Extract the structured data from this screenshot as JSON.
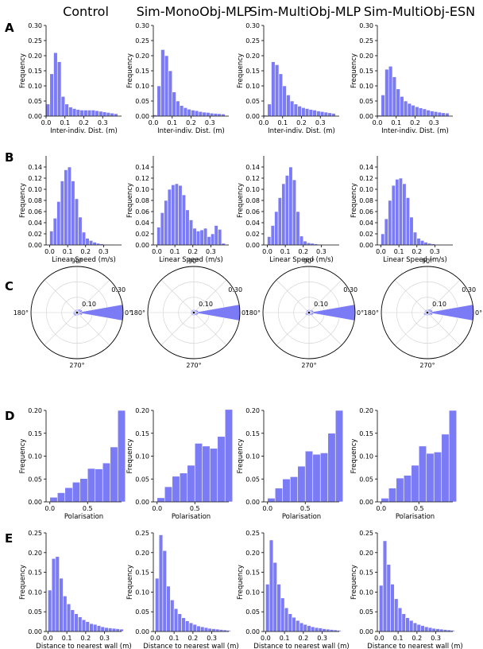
{
  "column_titles": [
    "Control",
    "Sim-MonoObj-MLP",
    "Sim-MultiObj-MLP",
    "Sim-MultiObj-ESN"
  ],
  "row_letters": [
    "A",
    "B",
    "C",
    "D",
    "E"
  ],
  "style": {
    "bar_color": "#7b7bf5",
    "bar_edge": "#ffffff",
    "axis_color": "#000000",
    "grid_color": "#cfcfcf"
  },
  "chart_data": [
    {
      "type": "bar",
      "row": "A",
      "xlabel": "Inter-indiv. Dist. (m)",
      "ylabel": "Frequency",
      "xlim": [
        0,
        0.4
      ],
      "ylim": [
        0,
        0.3
      ],
      "bin_width": 0.02,
      "xticks": [
        {
          "v": 0.0,
          "label": "0.0"
        },
        {
          "v": 0.1,
          "label": "0.1"
        },
        {
          "v": 0.2,
          "label": "0.2"
        },
        {
          "v": 0.3,
          "label": "0.3"
        }
      ],
      "yticks": [
        {
          "v": 0,
          "label": "0.00"
        },
        {
          "v": 0.05,
          "label": "0.05"
        },
        {
          "v": 0.1,
          "label": "0.10"
        },
        {
          "v": 0.15,
          "label": "0.15"
        },
        {
          "v": 0.2,
          "label": "0.20"
        },
        {
          "v": 0.25,
          "label": "0.25"
        },
        {
          "v": 0.3,
          "label": "0.30"
        }
      ],
      "series": [
        {
          "panel": "Control",
          "values": [
            0.04,
            0.14,
            0.21,
            0.18,
            0.065,
            0.04,
            0.03,
            0.025,
            0.022,
            0.02,
            0.02,
            0.02,
            0.02,
            0.018,
            0.016,
            0.014,
            0.012,
            0.01,
            0.008
          ]
        },
        {
          "panel": "Sim-MonoObj-MLP",
          "values": [
            0.004,
            0.1,
            0.22,
            0.2,
            0.15,
            0.08,
            0.05,
            0.035,
            0.028,
            0.023,
            0.02,
            0.018,
            0.015,
            0.013,
            0.012,
            0.01,
            0.009,
            0.008,
            0.007
          ]
        },
        {
          "panel": "Sim-MultiObj-MLP",
          "values": [
            0.003,
            0.04,
            0.18,
            0.17,
            0.14,
            0.1,
            0.07,
            0.05,
            0.04,
            0.033,
            0.028,
            0.025,
            0.022,
            0.02,
            0.017,
            0.015,
            0.013,
            0.011,
            0.009
          ]
        },
        {
          "panel": "Sim-MultiObj-ESN",
          "values": [
            0.003,
            0.07,
            0.155,
            0.165,
            0.13,
            0.09,
            0.065,
            0.05,
            0.042,
            0.036,
            0.031,
            0.027,
            0.024,
            0.02,
            0.017,
            0.015,
            0.013,
            0.011,
            0.01
          ]
        }
      ]
    },
    {
      "type": "bar",
      "row": "B",
      "xlabel": "Linear Speed (m/s)",
      "ylabel": "Frequency",
      "xlim": [
        -0.02,
        0.4
      ],
      "ylim": [
        0,
        0.16
      ],
      "bin_width": 0.02,
      "xticks": [
        {
          "v": 0.0,
          "label": "0.0"
        },
        {
          "v": 0.1,
          "label": "0.1"
        },
        {
          "v": 0.2,
          "label": "0.2"
        },
        {
          "v": 0.3,
          "label": "0.3"
        }
      ],
      "yticks": [
        {
          "v": 0,
          "label": "0.00"
        },
        {
          "v": 0.02,
          "label": "0.02"
        },
        {
          "v": 0.04,
          "label": "0.04"
        },
        {
          "v": 0.06,
          "label": "0.06"
        },
        {
          "v": 0.08,
          "label": "0.08"
        },
        {
          "v": 0.1,
          "label": "0.10"
        },
        {
          "v": 0.12,
          "label": "0.12"
        },
        {
          "v": 0.14,
          "label": "0.14"
        }
      ],
      "series": [
        {
          "panel": "Control",
          "values": [
            0.025,
            0.048,
            0.078,
            0.115,
            0.135,
            0.14,
            0.115,
            0.083,
            0.05,
            0.023,
            0.012,
            0.008,
            0.005,
            0.003,
            0.002,
            0.001,
            0.001,
            0.001,
            0.0
          ]
        },
        {
          "panel": "Sim-MonoObj-MLP",
          "values": [
            0.032,
            0.058,
            0.08,
            0.1,
            0.108,
            0.11,
            0.107,
            0.09,
            0.063,
            0.045,
            0.03,
            0.025,
            0.027,
            0.03,
            0.015,
            0.02,
            0.035,
            0.028,
            0.003
          ]
        },
        {
          "panel": "Sim-MultiObj-MLP",
          "values": [
            0.015,
            0.035,
            0.06,
            0.085,
            0.11,
            0.125,
            0.14,
            0.117,
            0.06,
            0.016,
            0.007,
            0.004,
            0.003,
            0.002,
            0.001,
            0.001,
            0.0,
            0.0,
            0.0
          ]
        },
        {
          "panel": "Sim-MultiObj-ESN",
          "values": [
            0.02,
            0.047,
            0.08,
            0.107,
            0.118,
            0.12,
            0.11,
            0.085,
            0.05,
            0.023,
            0.012,
            0.008,
            0.005,
            0.003,
            0.002,
            0.001,
            0.001,
            0.0,
            0.0
          ]
        }
      ]
    },
    {
      "type": "polar",
      "row": "C",
      "angle_labels": [
        "0°",
        "90°",
        "180°",
        "270°"
      ],
      "radius_labels": [
        "0.10",
        "0.30"
      ],
      "r_max": 0.3,
      "bin_count": 18,
      "series": [
        {
          "panel": "Control",
          "values": [
            0.3,
            0.035,
            0.03,
            0.025,
            0.02,
            0.02,
            0.02,
            0.02,
            0.02,
            0.025,
            0.025,
            0.025,
            0.025,
            0.02,
            0.02,
            0.02,
            0.02,
            0.035
          ]
        },
        {
          "panel": "Sim-MonoObj-MLP",
          "values": [
            0.3,
            0.03,
            0.025,
            0.02,
            0.02,
            0.02,
            0.02,
            0.02,
            0.02,
            0.02,
            0.02,
            0.02,
            0.02,
            0.02,
            0.02,
            0.02,
            0.025,
            0.03
          ]
        },
        {
          "panel": "Sim-MultiObj-MLP",
          "values": [
            0.3,
            0.03,
            0.025,
            0.02,
            0.02,
            0.02,
            0.02,
            0.02,
            0.02,
            0.02,
            0.025,
            0.025,
            0.02,
            0.02,
            0.02,
            0.02,
            0.025,
            0.03
          ]
        },
        {
          "panel": "Sim-MultiObj-ESN",
          "values": [
            0.3,
            0.035,
            0.03,
            0.025,
            0.02,
            0.02,
            0.02,
            0.02,
            0.02,
            0.02,
            0.025,
            0.025,
            0.02,
            0.02,
            0.02,
            0.02,
            0.025,
            0.035
          ]
        }
      ]
    },
    {
      "type": "bar",
      "row": "D",
      "xlabel": "Polarisation",
      "ylabel": "Frequency",
      "xlim": [
        -0.05,
        0.95
      ],
      "ylim": [
        0,
        0.2
      ],
      "bin_width": 0.1,
      "xticks": [
        {
          "v": 0.0,
          "label": "0.0"
        },
        {
          "v": 0.5,
          "label": "0.5"
        }
      ],
      "yticks": [
        {
          "v": 0,
          "label": "0.00"
        },
        {
          "v": 0.05,
          "label": "0.05"
        },
        {
          "v": 0.1,
          "label": "0.10"
        },
        {
          "v": 0.15,
          "label": "0.15"
        },
        {
          "v": 0.2,
          "label": "0.20"
        }
      ],
      "series": [
        {
          "panel": "Control",
          "values": [
            0.01,
            0.02,
            0.031,
            0.043,
            0.051,
            0.073,
            0.072,
            0.085,
            0.12,
            0.2
          ]
        },
        {
          "panel": "Sim-MonoObj-MLP",
          "values": [
            0.009,
            0.033,
            0.056,
            0.063,
            0.08,
            0.128,
            0.122,
            0.117,
            0.143,
            0.202
          ]
        },
        {
          "panel": "Sim-MultiObj-MLP",
          "values": [
            0.008,
            0.03,
            0.05,
            0.055,
            0.078,
            0.111,
            0.104,
            0.107,
            0.15,
            0.2
          ]
        },
        {
          "panel": "Sim-MultiObj-ESN",
          "values": [
            0.008,
            0.03,
            0.052,
            0.058,
            0.08,
            0.122,
            0.106,
            0.109,
            0.148,
            0.2
          ]
        }
      ]
    },
    {
      "type": "bar",
      "row": "E",
      "xlabel": "Distance to nearest wall (m)",
      "ylabel": "Frequency",
      "xlim": [
        -0.01,
        0.39
      ],
      "ylim": [
        0,
        0.25
      ],
      "bin_width": 0.02,
      "xticks": [
        {
          "v": 0.0,
          "label": "0.0"
        },
        {
          "v": 0.1,
          "label": "0.1"
        },
        {
          "v": 0.2,
          "label": "0.2"
        },
        {
          "v": 0.3,
          "label": "0.3"
        }
      ],
      "yticks": [
        {
          "v": 0,
          "label": "0.00"
        },
        {
          "v": 0.05,
          "label": "0.05"
        },
        {
          "v": 0.1,
          "label": "0.10"
        },
        {
          "v": 0.15,
          "label": "0.15"
        },
        {
          "v": 0.2,
          "label": "0.20"
        },
        {
          "v": 0.25,
          "label": "0.25"
        }
      ],
      "series": [
        {
          "panel": "Control",
          "values": [
            0.105,
            0.185,
            0.19,
            0.135,
            0.09,
            0.07,
            0.055,
            0.045,
            0.037,
            0.03,
            0.025,
            0.02,
            0.018,
            0.015,
            0.012,
            0.01,
            0.009,
            0.008,
            0.007,
            0.006
          ]
        },
        {
          "panel": "Sim-MonoObj-MLP",
          "values": [
            0.135,
            0.245,
            0.205,
            0.115,
            0.08,
            0.058,
            0.045,
            0.035,
            0.027,
            0.022,
            0.018,
            0.014,
            0.012,
            0.01,
            0.008,
            0.007,
            0.006,
            0.005,
            0.004,
            0.003
          ]
        },
        {
          "panel": "Sim-MultiObj-MLP",
          "values": [
            0.12,
            0.232,
            0.175,
            0.12,
            0.085,
            0.06,
            0.045,
            0.036,
            0.028,
            0.022,
            0.018,
            0.015,
            0.012,
            0.01,
            0.009,
            0.007,
            0.006,
            0.005,
            0.004,
            0.003
          ]
        },
        {
          "panel": "Sim-MultiObj-ESN",
          "values": [
            0.117,
            0.23,
            0.17,
            0.12,
            0.083,
            0.06,
            0.045,
            0.035,
            0.028,
            0.022,
            0.018,
            0.015,
            0.012,
            0.01,
            0.008,
            0.007,
            0.006,
            0.005,
            0.004,
            0.003
          ]
        }
      ]
    }
  ]
}
